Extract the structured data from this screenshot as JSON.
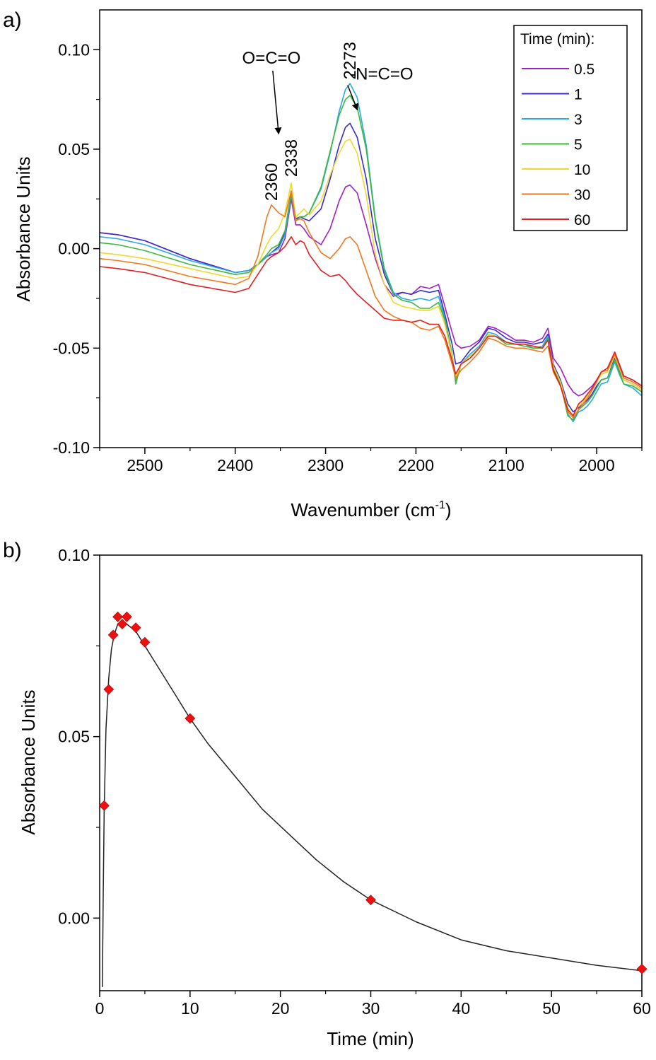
{
  "chart_data": [
    {
      "panel_label": "a)",
      "type": "line",
      "title": "",
      "xlabel": "Wavenumber (cm",
      "xlabel_sup": "-1",
      "xlabel_close": ")",
      "ylabel": "Absorbance Units",
      "xlim": [
        2550,
        1950
      ],
      "x_reversed": true,
      "ylim": [
        -0.1,
        0.12
      ],
      "xticks": [
        2500,
        2400,
        2300,
        2200,
        2100,
        2000
      ],
      "yticks": [
        -0.1,
        -0.05,
        0.0,
        0.05,
        0.1
      ],
      "ytick_labels": [
        "-0.10",
        "-0.05",
        "0.00",
        "0.05",
        "0.10"
      ],
      "grid": false,
      "legend": {
        "title": "Time (min):",
        "placement": "top-right"
      },
      "annotations": [
        {
          "text": "O=C=O",
          "x": 2360,
          "y": 0.093,
          "arrow_to": [
            2352,
            0.058
          ]
        },
        {
          "text": "-N=C=O",
          "x": 2238,
          "y": 0.085,
          "arrow_to": [
            2265,
            0.07
          ]
        },
        {
          "text": "2360",
          "x": 2360,
          "y": 0.024,
          "rotate": -90
        },
        {
          "text": "2338",
          "x": 2338,
          "y": 0.036,
          "rotate": -90
        },
        {
          "text": "2273",
          "x": 2273,
          "y": 0.085,
          "rotate": -90
        }
      ],
      "x": [
        2550,
        2530,
        2500,
        2450,
        2400,
        2385,
        2375,
        2365,
        2360,
        2352,
        2345,
        2338,
        2333,
        2328,
        2324,
        2318,
        2305,
        2295,
        2285,
        2278,
        2273,
        2265,
        2255,
        2245,
        2235,
        2225,
        2215,
        2205,
        2195,
        2185,
        2175,
        2168,
        2160,
        2156,
        2150,
        2140,
        2130,
        2120,
        2112,
        2100,
        2090,
        2080,
        2070,
        2060,
        2054,
        2048,
        2040,
        2032,
        2026,
        2020,
        2015,
        2010,
        2005,
        2000,
        1995,
        1988,
        1980,
        1975,
        1970,
        1960,
        1950
      ],
      "series": [
        {
          "name": "0.5",
          "color": "#a020c8",
          "values": [
            0.008,
            0.007,
            0.004,
            -0.005,
            -0.012,
            -0.011,
            -0.008,
            -0.004,
            -0.003,
            -0.002,
            0.005,
            0.025,
            0.012,
            0.012,
            0.01,
            0.006,
            0.002,
            0.01,
            0.024,
            0.031,
            0.032,
            0.028,
            0.012,
            -0.005,
            -0.018,
            -0.024,
            -0.022,
            -0.023,
            -0.019,
            -0.02,
            -0.018,
            -0.029,
            -0.042,
            -0.048,
            -0.05,
            -0.049,
            -0.046,
            -0.039,
            -0.04,
            -0.043,
            -0.046,
            -0.046,
            -0.047,
            -0.045,
            -0.04,
            -0.055,
            -0.06,
            -0.068,
            -0.072,
            -0.074,
            -0.073,
            -0.071,
            -0.069,
            -0.066,
            -0.063,
            -0.062,
            -0.052,
            -0.058,
            -0.064,
            -0.066,
            -0.069
          ]
        },
        {
          "name": "1",
          "color": "#3a2bd0",
          "values": [
            0.008,
            0.007,
            0.004,
            -0.005,
            -0.012,
            -0.011,
            -0.008,
            -0.004,
            -0.002,
            0.001,
            0.008,
            0.027,
            0.015,
            0.016,
            0.015,
            0.014,
            0.02,
            0.035,
            0.052,
            0.061,
            0.063,
            0.056,
            0.035,
            0.005,
            -0.013,
            -0.023,
            -0.022,
            -0.023,
            -0.021,
            -0.022,
            -0.021,
            -0.033,
            -0.048,
            -0.058,
            -0.057,
            -0.051,
            -0.047,
            -0.04,
            -0.041,
            -0.045,
            -0.047,
            -0.047,
            -0.048,
            -0.047,
            -0.043,
            -0.058,
            -0.066,
            -0.078,
            -0.082,
            -0.08,
            -0.078,
            -0.076,
            -0.073,
            -0.069,
            -0.066,
            -0.065,
            -0.055,
            -0.061,
            -0.066,
            -0.068,
            -0.071
          ]
        },
        {
          "name": "3",
          "color": "#2aa8e8",
          "values": [
            0.006,
            0.005,
            0.002,
            -0.006,
            -0.012,
            -0.011,
            -0.008,
            -0.004,
            -0.002,
            0.0,
            0.007,
            0.027,
            0.014,
            0.016,
            0.016,
            0.018,
            0.03,
            0.048,
            0.069,
            0.08,
            0.083,
            0.076,
            0.052,
            0.015,
            -0.01,
            -0.022,
            -0.025,
            -0.026,
            -0.025,
            -0.026,
            -0.024,
            -0.035,
            -0.053,
            -0.066,
            -0.058,
            -0.053,
            -0.049,
            -0.042,
            -0.043,
            -0.047,
            -0.048,
            -0.048,
            -0.05,
            -0.049,
            -0.044,
            -0.06,
            -0.068,
            -0.083,
            -0.087,
            -0.082,
            -0.081,
            -0.079,
            -0.076,
            -0.072,
            -0.068,
            -0.067,
            -0.057,
            -0.063,
            -0.068,
            -0.07,
            -0.074
          ]
        },
        {
          "name": "5",
          "color": "#3cb83c",
          "values": [
            0.003,
            0.002,
            -0.001,
            -0.008,
            -0.013,
            -0.012,
            -0.008,
            -0.003,
            0.0,
            0.002,
            0.009,
            0.028,
            0.014,
            0.016,
            0.016,
            0.018,
            0.031,
            0.049,
            0.067,
            0.075,
            0.077,
            0.071,
            0.05,
            0.014,
            -0.011,
            -0.023,
            -0.026,
            -0.027,
            -0.03,
            -0.03,
            -0.027,
            -0.036,
            -0.053,
            -0.068,
            -0.058,
            -0.054,
            -0.05,
            -0.043,
            -0.044,
            -0.048,
            -0.048,
            -0.049,
            -0.05,
            -0.05,
            -0.045,
            -0.06,
            -0.068,
            -0.084,
            -0.086,
            -0.081,
            -0.079,
            -0.077,
            -0.074,
            -0.07,
            -0.066,
            -0.065,
            -0.056,
            -0.062,
            -0.068,
            -0.069,
            -0.072
          ]
        },
        {
          "name": "10",
          "color": "#f0d830",
          "values": [
            -0.002,
            -0.003,
            -0.005,
            -0.01,
            -0.015,
            -0.014,
            -0.008,
            0.002,
            0.006,
            0.01,
            0.018,
            0.033,
            0.016,
            0.018,
            0.02,
            0.017,
            0.024,
            0.037,
            0.048,
            0.054,
            0.055,
            0.048,
            0.027,
            -0.003,
            -0.018,
            -0.027,
            -0.029,
            -0.03,
            -0.031,
            -0.031,
            -0.029,
            -0.038,
            -0.054,
            -0.065,
            -0.058,
            -0.054,
            -0.05,
            -0.043,
            -0.044,
            -0.047,
            -0.048,
            -0.048,
            -0.049,
            -0.05,
            -0.046,
            -0.059,
            -0.067,
            -0.08,
            -0.084,
            -0.079,
            -0.077,
            -0.074,
            -0.071,
            -0.067,
            -0.063,
            -0.062,
            -0.054,
            -0.06,
            -0.066,
            -0.068,
            -0.071
          ]
        },
        {
          "name": "30",
          "color": "#f07820",
          "values": [
            -0.005,
            -0.006,
            -0.008,
            -0.014,
            -0.018,
            -0.015,
            -0.004,
            0.016,
            0.022,
            0.018,
            0.016,
            0.029,
            0.014,
            0.015,
            0.014,
            0.008,
            -0.002,
            -0.005,
            0.0,
            0.005,
            0.006,
            0.002,
            -0.011,
            -0.024,
            -0.031,
            -0.034,
            -0.036,
            -0.037,
            -0.04,
            -0.041,
            -0.039,
            -0.046,
            -0.058,
            -0.065,
            -0.061,
            -0.057,
            -0.052,
            -0.045,
            -0.046,
            -0.049,
            -0.05,
            -0.05,
            -0.051,
            -0.052,
            -0.049,
            -0.062,
            -0.069,
            -0.082,
            -0.085,
            -0.081,
            -0.078,
            -0.075,
            -0.071,
            -0.067,
            -0.062,
            -0.061,
            -0.053,
            -0.059,
            -0.065,
            -0.067,
            -0.07
          ]
        },
        {
          "name": "60",
          "color": "#e02020",
          "values": [
            -0.009,
            -0.01,
            -0.012,
            -0.018,
            -0.022,
            -0.02,
            -0.013,
            -0.006,
            -0.004,
            -0.002,
            0.001,
            0.006,
            0.002,
            0.004,
            0.003,
            -0.003,
            -0.011,
            -0.014,
            -0.013,
            -0.016,
            -0.019,
            -0.023,
            -0.027,
            -0.031,
            -0.035,
            -0.036,
            -0.036,
            -0.037,
            -0.036,
            -0.038,
            -0.038,
            -0.044,
            -0.056,
            -0.063,
            -0.058,
            -0.055,
            -0.05,
            -0.044,
            -0.044,
            -0.047,
            -0.048,
            -0.048,
            -0.049,
            -0.05,
            -0.046,
            -0.061,
            -0.069,
            -0.081,
            -0.084,
            -0.078,
            -0.076,
            -0.073,
            -0.07,
            -0.066,
            -0.062,
            -0.06,
            -0.052,
            -0.058,
            -0.064,
            -0.066,
            -0.069
          ]
        }
      ]
    },
    {
      "panel_label": "b)",
      "type": "scatter",
      "title": "",
      "xlabel": "Time (min)",
      "ylabel": "Absorbance Units",
      "xlim": [
        0,
        60
      ],
      "ylim": [
        -0.02,
        0.1
      ],
      "xticks": [
        0,
        10,
        20,
        30,
        40,
        50,
        60
      ],
      "yticks": [
        0.0,
        0.05,
        0.1
      ],
      "ytick_labels": [
        "0.00",
        "0.05",
        "0.10"
      ],
      "grid": false,
      "marker": {
        "shape": "diamond",
        "color": "#ee1010"
      },
      "fit_line_color": "#222222",
      "points": [
        {
          "x": 0.5,
          "y": 0.031
        },
        {
          "x": 1,
          "y": 0.063
        },
        {
          "x": 1.5,
          "y": 0.078
        },
        {
          "x": 2,
          "y": 0.083
        },
        {
          "x": 2.5,
          "y": 0.081
        },
        {
          "x": 3,
          "y": 0.083
        },
        {
          "x": 4,
          "y": 0.08
        },
        {
          "x": 5,
          "y": 0.076
        },
        {
          "x": 10,
          "y": 0.055
        },
        {
          "x": 30,
          "y": 0.005
        },
        {
          "x": 60,
          "y": -0.014
        }
      ],
      "fit_curve": {
        "x": [
          0.3,
          0.4,
          0.5,
          0.7,
          1.0,
          1.3,
          1.6,
          2.0,
          2.5,
          3.0,
          3.5,
          4.0,
          5.0,
          6.0,
          7.0,
          8.0,
          10.0,
          12.0,
          15.0,
          18.0,
          21.0,
          24.0,
          27.0,
          30.0,
          35.0,
          40.0,
          45.0,
          50.0,
          55.0,
          60.0
        ],
        "y": [
          -0.019,
          0.008,
          0.03,
          0.052,
          0.066,
          0.074,
          0.078,
          0.081,
          0.082,
          0.081,
          0.08,
          0.079,
          0.075,
          0.071,
          0.067,
          0.063,
          0.055,
          0.048,
          0.039,
          0.03,
          0.023,
          0.016,
          0.01,
          0.005,
          -0.001,
          -0.006,
          -0.009,
          -0.011,
          -0.013,
          -0.0145
        ]
      }
    }
  ]
}
